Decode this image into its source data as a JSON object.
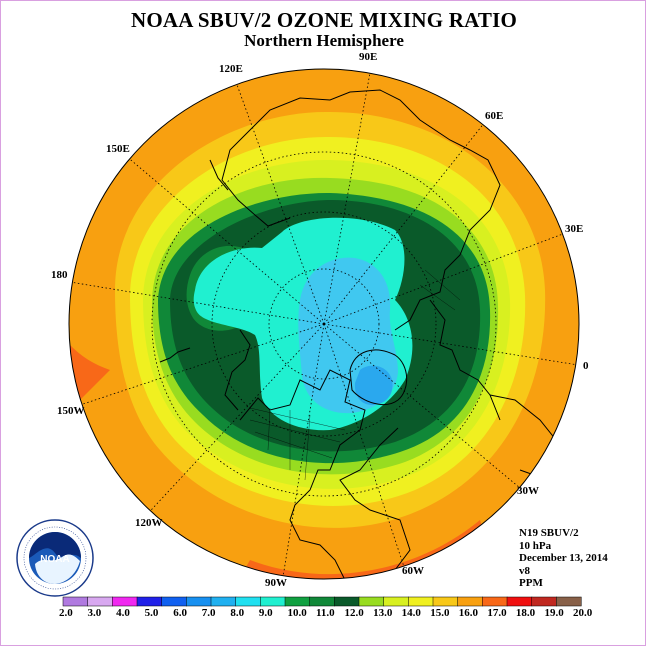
{
  "title": "NOAA SBUV/2 OZONE MIXING RATIO",
  "subtitle": "Northern Hemisphere",
  "longitude_labels": [
    {
      "id": "lon-120e",
      "text": "120E"
    },
    {
      "id": "lon-90e",
      "text": "90E"
    },
    {
      "id": "lon-60e",
      "text": "60E"
    },
    {
      "id": "lon-150e",
      "text": "150E"
    },
    {
      "id": "lon-30e",
      "text": "30E"
    },
    {
      "id": "lon-180",
      "text": "180"
    },
    {
      "id": "lon-0",
      "text": "0"
    },
    {
      "id": "lon-150w",
      "text": "150W"
    },
    {
      "id": "lon-30w",
      "text": "30W"
    },
    {
      "id": "lon-120w",
      "text": "120W"
    },
    {
      "id": "lon-60w",
      "text": "60W"
    },
    {
      "id": "lon-90w",
      "text": "90W"
    }
  ],
  "info": {
    "satellite": "N19 SBUV/2",
    "level": "10 hPa",
    "date": "December 13, 2014",
    "version": "v8",
    "units": "PPM"
  },
  "logo": {
    "text": "NOAA"
  },
  "colorbar": {
    "labels": [
      "2.0",
      "3.0",
      "4.0",
      "5.0",
      "6.0",
      "7.0",
      "8.0",
      "9.0",
      "10.0",
      "11.0",
      "12.0",
      "13.0",
      "14.0",
      "15.0",
      "16.0",
      "17.0",
      "18.0",
      "19.0",
      "20.0"
    ],
    "colors": [
      "#b07ae0",
      "#d8a8f0",
      "#f028f0",
      "#2020e8",
      "#1060f0",
      "#1890f0",
      "#20b0f0",
      "#20e0f0",
      "#20f0d0",
      "#10a040",
      "#108838",
      "#0a5a2a",
      "#98dc20",
      "#d8f020",
      "#f0f020",
      "#f8c818",
      "#f8a010",
      "#f86818",
      "#f01010",
      "#c02820",
      "#886048"
    ]
  },
  "map": {
    "projection": "north polar stereographic",
    "ozone_rings_ppm": [
      17.0,
      16.0,
      15.0,
      14.0,
      13.0,
      12.0,
      11.0,
      10.0,
      9.0
    ],
    "colors": {
      "17": "#f8a010",
      "18": "#f86818",
      "16": "#f8c818",
      "15": "#f0f020",
      "14": "#d8f020",
      "13": "#98dc20",
      "12": "#108838",
      "11": "#0a5a2a",
      "10": "#20f0d0",
      "9": "#20e0f0",
      "8": "#40c8f0"
    }
  }
}
